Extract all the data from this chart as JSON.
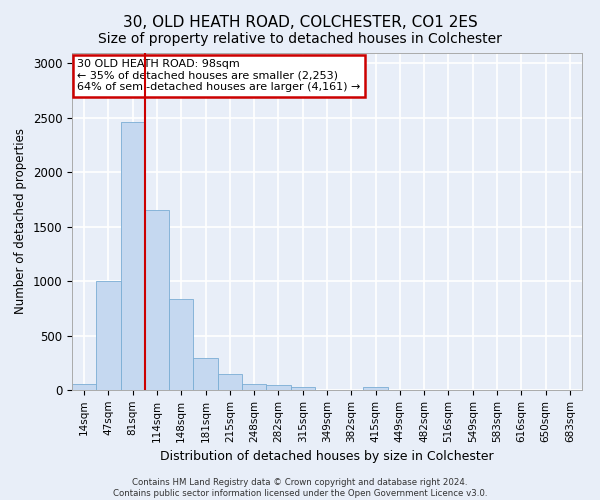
{
  "title1": "30, OLD HEATH ROAD, COLCHESTER, CO1 2ES",
  "title2": "Size of property relative to detached houses in Colchester",
  "xlabel": "Distribution of detached houses by size in Colchester",
  "ylabel": "Number of detached properties",
  "footnote": "Contains HM Land Registry data © Crown copyright and database right 2024.\nContains public sector information licensed under the Open Government Licence v3.0.",
  "bar_labels": [
    "14sqm",
    "47sqm",
    "81sqm",
    "114sqm",
    "148sqm",
    "181sqm",
    "215sqm",
    "248sqm",
    "282sqm",
    "315sqm",
    "349sqm",
    "382sqm",
    "415sqm",
    "449sqm",
    "482sqm",
    "516sqm",
    "549sqm",
    "583sqm",
    "616sqm",
    "650sqm",
    "683sqm"
  ],
  "bar_values": [
    55,
    1000,
    2460,
    1650,
    840,
    290,
    145,
    55,
    45,
    30,
    0,
    0,
    30,
    0,
    0,
    0,
    0,
    0,
    0,
    0,
    0
  ],
  "bar_color": "#c5d8f0",
  "bar_edge_color": "#7aadd4",
  "red_line_after_bar": 2,
  "highlight_color": "#cc0000",
  "annotation_text": "30 OLD HEATH ROAD: 98sqm\n← 35% of detached houses are smaller (2,253)\n64% of semi-detached houses are larger (4,161) →",
  "annotation_box_color": "#ffffff",
  "annotation_border_color": "#cc0000",
  "ylim": [
    0,
    3100
  ],
  "yticks": [
    0,
    500,
    1000,
    1500,
    2000,
    2500,
    3000
  ],
  "background_color": "#e8eef8",
  "plot_bg_color": "#e8eef8",
  "grid_color": "#ffffff",
  "title1_fontsize": 11,
  "title2_fontsize": 10
}
